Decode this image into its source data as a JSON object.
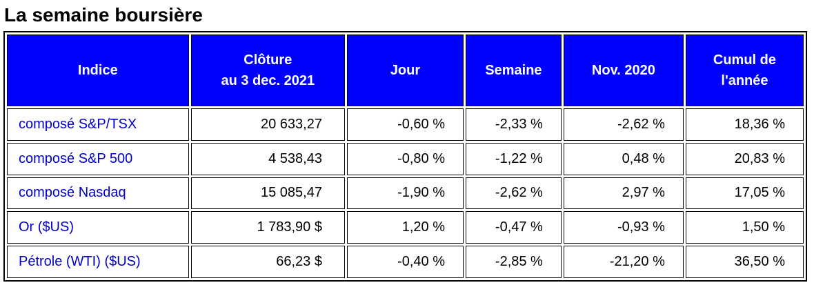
{
  "title": "La semaine boursière",
  "columns": [
    {
      "line1": "Indice",
      "line2": ""
    },
    {
      "line1": "Clôture",
      "line2": "au 3 dec. 2021"
    },
    {
      "line1": "Jour",
      "line2": ""
    },
    {
      "line1": "Semaine",
      "line2": ""
    },
    {
      "line1": "Nov. 2020",
      "line2": ""
    },
    {
      "line1": "Cumul de",
      "line2": "l'année"
    }
  ],
  "rows": [
    {
      "name": "composé S&P/TSX",
      "close": "20 633,27",
      "day": "-0,60 %",
      "week": "-2,33 %",
      "month": "-2,62 %",
      "ytd": "18,36 %"
    },
    {
      "name": "composé S&P 500",
      "close": "4 538,43",
      "day": "-0,80 %",
      "week": "-1,22 %",
      "month": "0,48 %",
      "ytd": "20,83 %"
    },
    {
      "name": "composé Nasdaq",
      "close": "15 085,47",
      "day": "-1,90 %",
      "week": "-2,62 %",
      "month": "2,97 %",
      "ytd": "17,05 %"
    },
    {
      "name": "Or ($US)",
      "close": "1 783,90 $",
      "day": "1,20 %",
      "week": "-0,47 %",
      "month": "-0,93 %",
      "ytd": "1,50 %"
    },
    {
      "name": "Pétrole (WTI) ($US)",
      "close": "66,23 $",
      "day": "-0,40 %",
      "week": "-2,85 %",
      "month": "-21,20 %",
      "ytd": "36,50 %"
    }
  ],
  "colors": {
    "header_bg": "#0000ff",
    "header_text": "#ffffff",
    "name_text": "#0000cc"
  }
}
